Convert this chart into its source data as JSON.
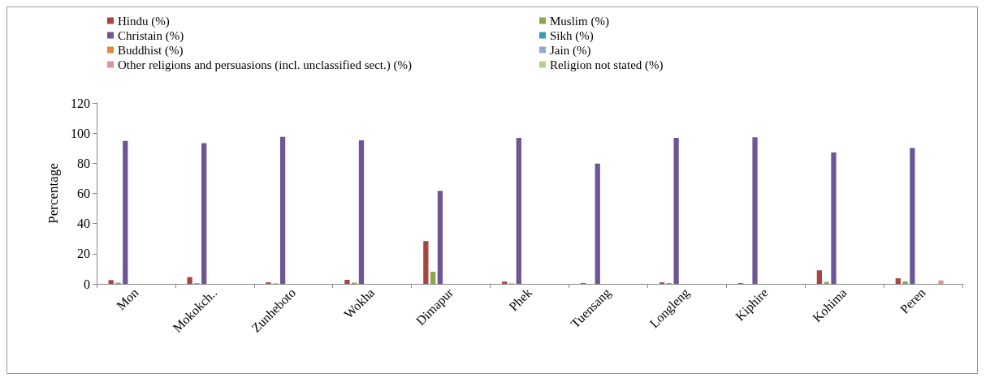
{
  "chart_data": {
    "type": "bar",
    "ylabel": "Percentage",
    "categories": [
      "Mon",
      "Mokokch..",
      "Zunheboto",
      "Wokha",
      "Dimapur",
      "Phek",
      "Tuensang",
      "Longleng",
      "Kiphire",
      "Kohima",
      "Peren"
    ],
    "series": [
      {
        "name": "Hindu (%)",
        "color": "#a94442",
        "values": [
          2.5,
          4.5,
          1,
          2.7,
          28.4,
          1.5,
          0.5,
          1,
          0.5,
          9,
          3.7
        ]
      },
      {
        "name": "Muslim (%)",
        "color": "#8aa84b",
        "values": [
          0.8,
          0.5,
          0.3,
          0.8,
          8,
          0.3,
          null,
          0.5,
          null,
          1.3,
          1.6
        ]
      },
      {
        "name": "Christain (%)",
        "color": "#6f5597",
        "values": [
          94.9,
          93.3,
          97.6,
          95.3,
          61.7,
          96.8,
          79.8,
          96.8,
          97.2,
          87.2,
          90.2
        ]
      },
      {
        "name": "Sikh (%)",
        "color": "#3c9cb5",
        "values": [
          0,
          0,
          0,
          0,
          0,
          0,
          0,
          0,
          0,
          0,
          0
        ]
      },
      {
        "name": "Buddhist (%)",
        "color": "#e6883a",
        "values": [
          0,
          0,
          0,
          0,
          0,
          0,
          0,
          0,
          0,
          0,
          0
        ]
      },
      {
        "name": "Jain (%)",
        "color": "#93a9d4",
        "values": [
          0,
          0,
          0,
          0,
          0,
          0,
          0,
          0,
          0,
          0,
          0
        ]
      },
      {
        "name": "Other religions and persuasions (incl. unclassified sect.) (%)",
        "color": "#d99694",
        "values": [
          0,
          0,
          0,
          0,
          0,
          0,
          0,
          0,
          0,
          0,
          2.3
        ]
      },
      {
        "name": "Religion not stated (%)",
        "color": "#b3d08f",
        "values": [
          0,
          0,
          0,
          0,
          0,
          0,
          0,
          0,
          0,
          0,
          0
        ]
      }
    ],
    "ylim": [
      0,
      120
    ],
    "yticks": [
      0,
      20,
      40,
      60,
      80,
      100,
      120
    ],
    "grid": false,
    "legend": "top"
  }
}
